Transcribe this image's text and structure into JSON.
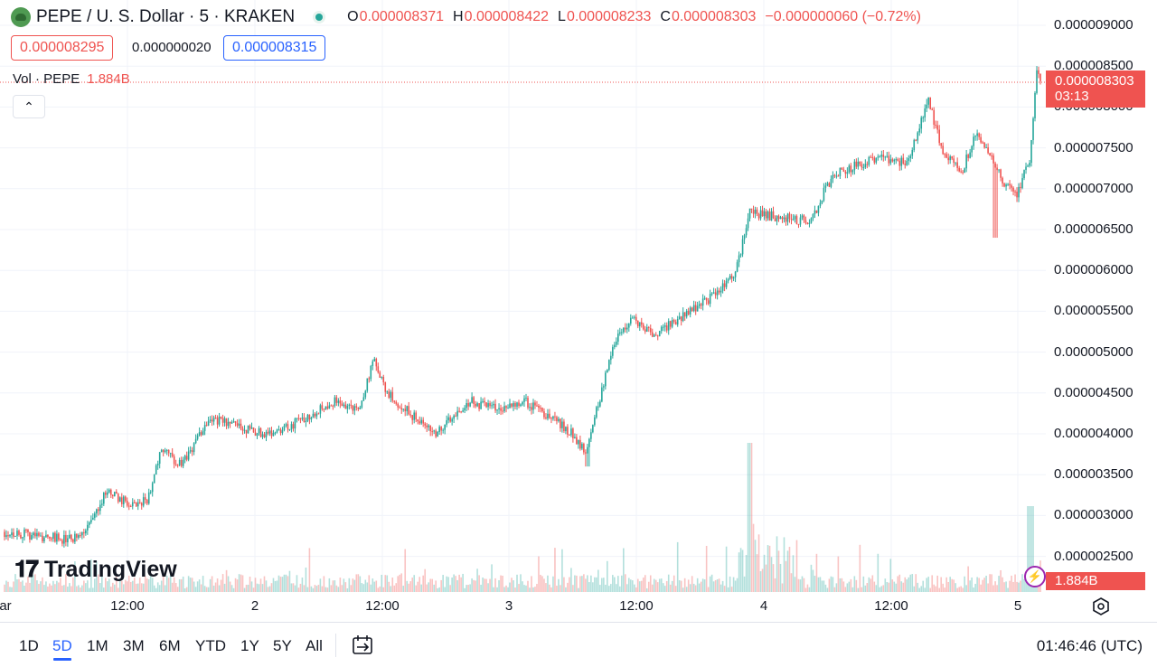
{
  "header": {
    "symbol_title": "PEPE / U. S. Dollar · 5 · KRAKEN",
    "ohlc": {
      "open_key": "O",
      "open": "0.000008371",
      "high_key": "H",
      "high": "0.000008422",
      "low_key": "L",
      "low": "0.000008233",
      "close_key": "C",
      "close": "0.000008303",
      "change": "−0.000000060 (−0.72%)"
    },
    "sell_price": "0.000008295",
    "spread": "0.000000020",
    "buy_price": "0.000008315",
    "volume_label": "Vol · PEPE",
    "volume_value": "1.884B",
    "collapse_symbol": "⌃"
  },
  "price_scale": {
    "labels": [
      "0.000009000",
      "0.000008500",
      "0.000008000",
      "0.000007500",
      "0.000007000",
      "0.000006500",
      "0.000006000",
      "0.000005500",
      "0.000005000",
      "0.000004500",
      "0.000004000",
      "0.000003500",
      "0.000003000",
      "0.000002500"
    ],
    "last_price": "0.000008303",
    "countdown": "03:13",
    "volume_tag": "1.884B"
  },
  "time_scale": {
    "labels": [
      "ar",
      "12:00",
      "2",
      "12:00",
      "3",
      "12:00",
      "4",
      "12:00",
      "5"
    ]
  },
  "watermark": {
    "logo_mark": "𝟏𝟕",
    "text": "TradingView"
  },
  "bottom_bar": {
    "ranges": [
      "1D",
      "5D",
      "1M",
      "3M",
      "6M",
      "YTD",
      "1Y",
      "5Y",
      "All"
    ],
    "active_range": "5D",
    "clock": "01:46:46 (UTC)"
  },
  "icons": {
    "symbol": "frog-logo-icon",
    "status": "market-open-dot-icon",
    "alert": "lightning-bolt-icon",
    "settings": "gear-icon",
    "compare": "date-range-icon"
  },
  "colors": {
    "up": "#26a69a",
    "down": "#ef5350",
    "accent": "#2962ff",
    "grid": "#f0f3fa",
    "alert": "#9c27b0"
  },
  "chart_data": {
    "type": "candlestick",
    "timeframe": "5",
    "x_axis": [
      "ar",
      "12:00",
      "2",
      "12:00",
      "3",
      "12:00",
      "4",
      "12:00",
      "5"
    ],
    "price_path": [
      [
        0,
        2.8e-06
      ],
      [
        0.5,
        2.7e-06
      ],
      [
        0.6,
        2.8e-06
      ],
      [
        0.75,
        3.3e-06
      ],
      [
        0.95,
        3.1e-06
      ],
      [
        1.05,
        3.2e-06
      ],
      [
        1.15,
        3.8e-06
      ],
      [
        1.3,
        3.6e-06
      ],
      [
        1.5,
        4.2e-06
      ],
      [
        1.9,
        4e-06
      ],
      [
        2.1,
        4.1e-06
      ],
      [
        2.4,
        4.4e-06
      ],
      [
        2.6,
        4.3e-06
      ],
      [
        2.7,
        4.9e-06
      ],
      [
        2.8,
        4.5e-06
      ],
      [
        3.0,
        4.2e-06
      ],
      [
        3.15,
        4e-06
      ],
      [
        3.4,
        4.4e-06
      ],
      [
        3.6,
        4.3e-06
      ],
      [
        3.8,
        4.4e-06
      ],
      [
        4.0,
        4.2e-06
      ],
      [
        4.15,
        4e-06
      ],
      [
        4.25,
        3.8e-06
      ],
      [
        4.35,
        4.4e-06
      ],
      [
        4.45,
        5.1e-06
      ],
      [
        4.6,
        5.4e-06
      ],
      [
        4.75,
        5.2e-06
      ],
      [
        5.0,
        5.5e-06
      ],
      [
        5.2,
        5.7e-06
      ],
      [
        5.3,
        5.9e-06
      ],
      [
        5.35,
        6e-06
      ],
      [
        5.45,
        6.7e-06
      ],
      [
        5.9,
        6.6e-06
      ],
      [
        6.0,
        7e-06
      ],
      [
        6.1,
        7.2e-06
      ],
      [
        6.4,
        7.4e-06
      ],
      [
        6.6,
        7.3e-06
      ],
      [
        6.75,
        8.1e-06
      ],
      [
        6.85,
        7.5e-06
      ],
      [
        7.0,
        7.2e-06
      ],
      [
        7.1,
        7.7e-06
      ],
      [
        7.3,
        7.1e-06
      ],
      [
        7.4,
        6.9e-06
      ],
      [
        7.5,
        7.4e-06
      ],
      [
        7.55,
        8.5e-06
      ],
      [
        7.58,
        8.3e-06
      ]
    ],
    "last_close": 8.303e-06,
    "current_volume": "1.884B",
    "ylim": [
      2.2e-06,
      9.3e-06
    ],
    "grid": true
  }
}
